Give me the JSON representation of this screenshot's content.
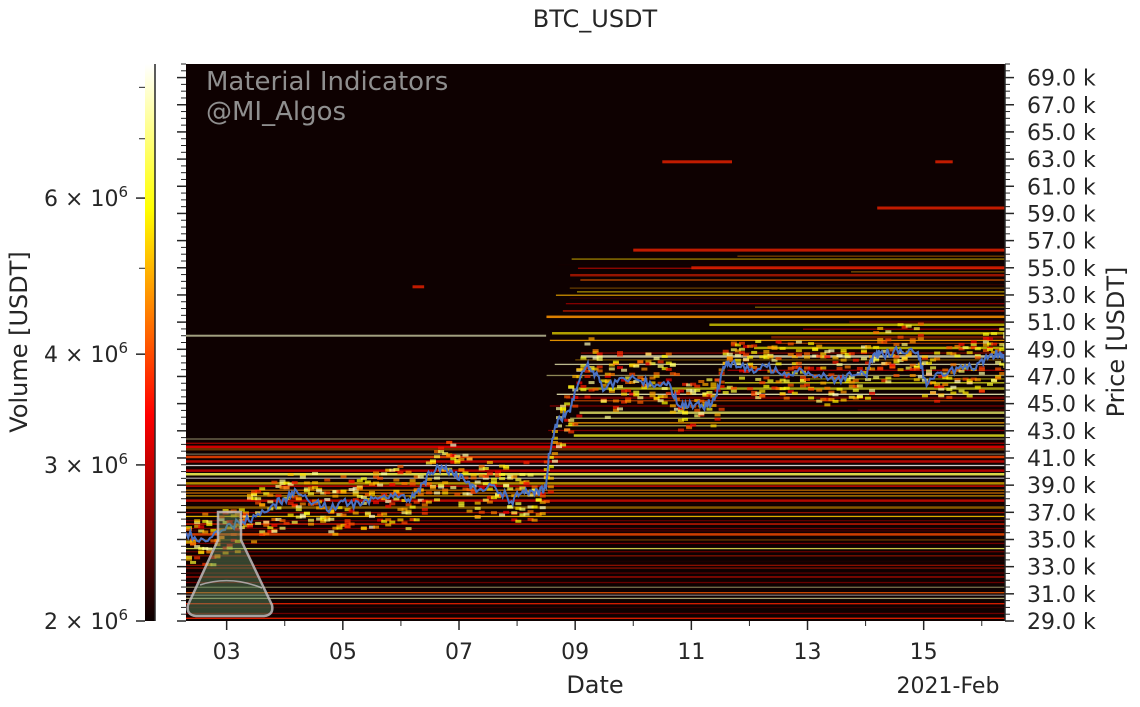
{
  "chart_data": {
    "type": "heatmap",
    "title": "BTC_USDT",
    "watermark": [
      "Material Indicators",
      "@MI_Algos"
    ],
    "xlabel": "Date",
    "x_offset_label": "2021-Feb",
    "x_tick_labels": [
      "03",
      "05",
      "07",
      "09",
      "11",
      "13",
      "15"
    ],
    "x_range_days": [
      2.3,
      16.4
    ],
    "price_axis": {
      "label": "Price [USDT]",
      "position": "right",
      "range": [
        29000,
        70000
      ],
      "tick_values": [
        29000,
        31000,
        33000,
        35000,
        37000,
        39000,
        41000,
        43000,
        45000,
        47000,
        49000,
        51000,
        53000,
        55000,
        57000,
        59000,
        61000,
        63000,
        65000,
        67000,
        69000
      ],
      "tick_labels": [
        "29.0 k",
        "31.0 k",
        "33.0 k",
        "35.0 k",
        "37.0 k",
        "39.0 k",
        "41.0 k",
        "43.0 k",
        "45.0 k",
        "47.0 k",
        "49.0 k",
        "51.0 k",
        "53.0 k",
        "55.0 k",
        "57.0 k",
        "59.0 k",
        "61.0 k",
        "63.0 k",
        "65.0 k",
        "67.0 k",
        "69.0 k"
      ]
    },
    "colorbar": {
      "label": "Volume [USDT]",
      "scale": "log",
      "range": [
        2000000,
        8500000
      ],
      "colormap": "hot",
      "tick_values": [
        2000000,
        3000000,
        4000000,
        6000000
      ],
      "tick_mantissas": [
        "2",
        "3",
        "4",
        "6"
      ]
    },
    "series": [
      {
        "type": "line",
        "color": "#4a72c4",
        "points": [
          [
            2.3,
            35500
          ],
          [
            2.6,
            35000
          ],
          [
            2.9,
            35600
          ],
          [
            3.2,
            36300
          ],
          [
            3.5,
            36700
          ],
          [
            3.8,
            37600
          ],
          [
            4.0,
            38000
          ],
          [
            4.2,
            38600
          ],
          [
            4.5,
            37700
          ],
          [
            4.8,
            37300
          ],
          [
            5.0,
            37800
          ],
          [
            5.3,
            37500
          ],
          [
            5.6,
            38000
          ],
          [
            5.9,
            38400
          ],
          [
            6.1,
            37800
          ],
          [
            6.3,
            38700
          ],
          [
            6.5,
            39800
          ],
          [
            6.7,
            40400
          ],
          [
            6.9,
            39800
          ],
          [
            7.1,
            39300
          ],
          [
            7.3,
            38500
          ],
          [
            7.6,
            39000
          ],
          [
            7.9,
            37800
          ],
          [
            8.1,
            38600
          ],
          [
            8.3,
            38300
          ],
          [
            8.5,
            38800
          ],
          [
            8.55,
            41300
          ],
          [
            8.7,
            43800
          ],
          [
            8.9,
            44500
          ],
          [
            9.0,
            46000
          ],
          [
            9.2,
            47800
          ],
          [
            9.35,
            47200
          ],
          [
            9.5,
            46000
          ],
          [
            9.8,
            46900
          ],
          [
            10.1,
            46700
          ],
          [
            10.4,
            46400
          ],
          [
            10.6,
            46600
          ],
          [
            10.8,
            44800
          ],
          [
            11.0,
            45000
          ],
          [
            11.2,
            44700
          ],
          [
            11.4,
            45300
          ],
          [
            11.55,
            47700
          ],
          [
            11.7,
            48000
          ],
          [
            12.0,
            47400
          ],
          [
            12.3,
            47700
          ],
          [
            12.6,
            47300
          ],
          [
            12.9,
            47500
          ],
          [
            13.2,
            47100
          ],
          [
            13.5,
            46800
          ],
          [
            13.8,
            47100
          ],
          [
            14.0,
            47100
          ],
          [
            14.15,
            48700
          ],
          [
            14.3,
            48600
          ],
          [
            14.6,
            49000
          ],
          [
            14.9,
            48800
          ],
          [
            15.05,
            46300
          ],
          [
            15.3,
            47300
          ],
          [
            15.6,
            47600
          ],
          [
            15.9,
            47600
          ],
          [
            16.1,
            48300
          ],
          [
            16.3,
            48700
          ],
          [
            16.4,
            48400
          ]
        ]
      }
    ]
  }
}
